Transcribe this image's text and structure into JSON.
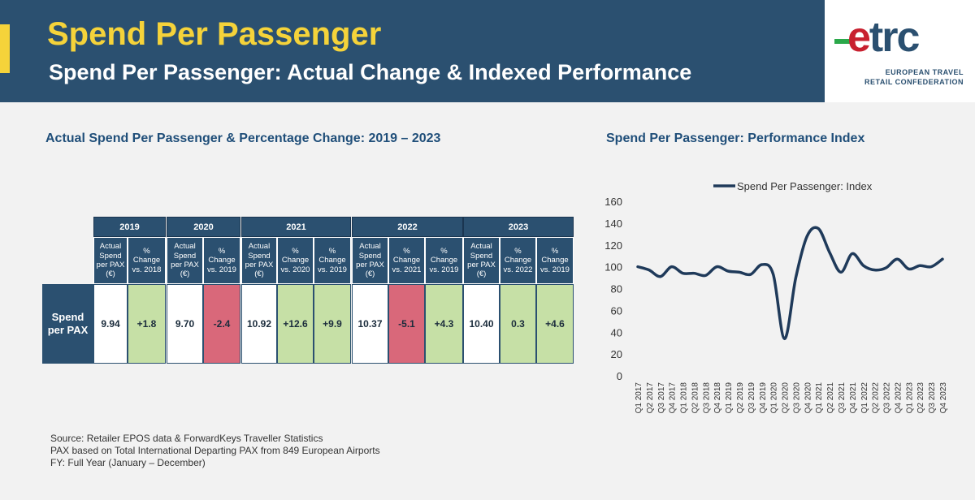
{
  "header": {
    "title": "Spend Per Passenger",
    "subtitle": "Spend Per Passenger: Actual Change & Indexed Performance"
  },
  "logo": {
    "word_e": "e",
    "word_rest": "trc",
    "line1": "EUROPEAN TRAVEL",
    "line2": "RETAIL CONFEDERATION"
  },
  "colors": {
    "header_bg": "#2b5070",
    "title_yellow": "#f5d33a",
    "positive_cell": "#c6e0a6",
    "negative_cell": "#d9687a",
    "line": "#1f3a5a"
  },
  "left_section": {
    "title": "Actual Spend Per Passenger & Percentage Change: 2019 – 2023"
  },
  "table": {
    "years": [
      "2019",
      "2020",
      "2021",
      "2022",
      "2023"
    ],
    "subheaders": [
      "Actual Spend per PAX (€)",
      "% Change vs. 2018",
      "Actual Spend per PAX (€)",
      "% Change vs. 2019",
      "Actual Spend per PAX (€)",
      "% Change vs. 2020",
      "% Change vs. 2019",
      "Actual Spend per PAX (€)",
      "% Change vs. 2021",
      "% Change vs. 2019",
      "Actual Spend per PAX (€)",
      "% Change vs. 2022",
      "% Change vs. 2019"
    ],
    "row_label": "Spend per PAX",
    "values": [
      "9.94",
      "+1.8",
      "9.70",
      "-2.4",
      "10.92",
      "+12.6",
      "+9.9",
      "10.37",
      "-5.1",
      "+4.3",
      "10.40",
      "0.3",
      "+4.6"
    ]
  },
  "sources": {
    "line1": "Source: Retailer EPOS data & ForwardKeys Traveller Statistics",
    "line2": "PAX based on Total International Departing PAX from 849 European Airports",
    "line3": "FY: Full Year (January – December)"
  },
  "chart_data": {
    "type": "line",
    "title": "Spend Per Passenger: Performance Index",
    "xlabel": "",
    "ylabel": "",
    "ylim": [
      0,
      160
    ],
    "yticks": [
      0,
      20,
      40,
      60,
      80,
      100,
      120,
      140,
      160
    ],
    "grid": false,
    "legend_position": "top",
    "categories": [
      "Q1 2017",
      "Q2 2017",
      "Q3 2017",
      "Q4 2017",
      "Q1 2018",
      "Q2 2018",
      "Q3 2018",
      "Q4 2018",
      "Q1 2019",
      "Q2 2019",
      "Q3 2019",
      "Q4 2019",
      "Q1 2020",
      "Q2 2020",
      "Q3 2020",
      "Q4 2020",
      "Q1 2021",
      "Q2 2021",
      "Q3 2021",
      "Q4 2021",
      "Q1 2022",
      "Q2 2022",
      "Q3 2022",
      "Q4 2022",
      "Q1 2023",
      "Q2 2023",
      "Q3 2023",
      "Q4 2023"
    ],
    "series": [
      {
        "name": "Spend Per Passenger: Index",
        "values": [
          100,
          97,
          91,
          100,
          94,
          94,
          92,
          100,
          96,
          95,
          93,
          102,
          93,
          34,
          90,
          128,
          135,
          113,
          95,
          112,
          101,
          97,
          99,
          107,
          98,
          101,
          100,
          107
        ]
      }
    ]
  }
}
